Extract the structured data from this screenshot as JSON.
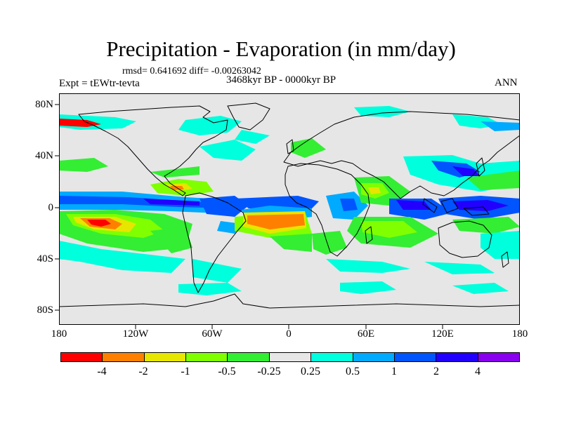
{
  "map": {
    "title": "Precipitation - Evaporation (in mm/day)",
    "stats": "rmsd= 0.641692 diff= -0.00263042",
    "experiment": "Expt = tEWtr-tevta",
    "period": "3468kyr BP - 0000kyr BP",
    "season": "ANN",
    "y_ticks": [
      "80N",
      "40N",
      "0",
      "40S",
      "80S"
    ],
    "x_ticks": [
      "180",
      "120W",
      "60W",
      "0",
      "60E",
      "120E",
      "180"
    ]
  },
  "colorbar": {
    "labels": [
      "-4",
      "-2",
      "-1",
      "-0.5",
      "-0.25",
      "0.25",
      "0.5",
      "1",
      "2",
      "4"
    ],
    "colors": [
      "#ff0000",
      "#ff8000",
      "#e6e600",
      "#80ff00",
      "#33ee33",
      "#e6e6e6",
      "#00ffdd",
      "#00aaff",
      "#0055ff",
      "#2200ff",
      "#8800ee"
    ]
  },
  "palette": {
    "ocean": "#e6e6e6",
    "coast": "#000000"
  }
}
